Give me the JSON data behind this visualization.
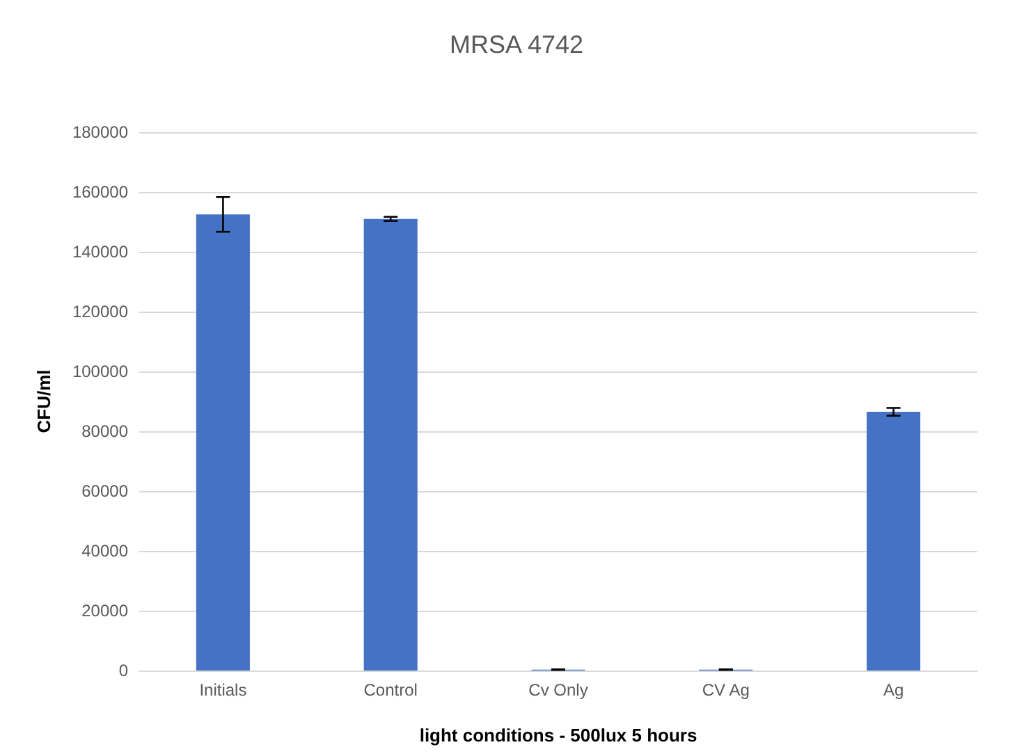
{
  "chart_data": {
    "type": "bar",
    "title": "MRSA 4742",
    "xlabel": "light conditions - 500lux 5 hours",
    "ylabel": "CFU/ml",
    "categories": [
      "Initials",
      "Control",
      "Cv Only",
      "CV Ag",
      "Ag"
    ],
    "values": [
      152500,
      151000,
      300,
      300,
      86500
    ],
    "errors": [
      5800,
      700,
      100,
      100,
      1300
    ],
    "color": "#4472c4",
    "ylim": [
      0,
      180000
    ],
    "yticks": [
      0,
      20000,
      40000,
      60000,
      80000,
      100000,
      120000,
      140000,
      160000,
      180000
    ],
    "grid": "y"
  }
}
